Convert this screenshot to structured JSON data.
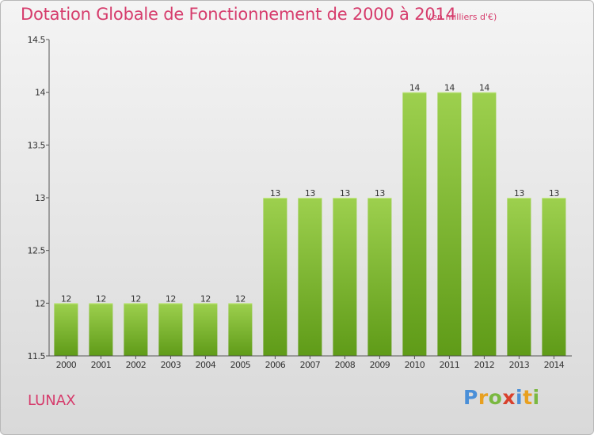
{
  "header": {
    "title": "Dotation Globale de Fonctionnement de 2000 à 2014",
    "unit_note": "(en milliers d'€)"
  },
  "footer": {
    "commune": "LUNAX",
    "logo_text": "Proxiti"
  },
  "colors": {
    "title": "#d63c6c",
    "bar_top": "#9dd04e",
    "bar_bottom": "#5f9b18",
    "axis": "#555555",
    "grid": "#dddddd"
  },
  "chart_data": {
    "type": "bar",
    "categories": [
      "2000",
      "2001",
      "2002",
      "2003",
      "2004",
      "2005",
      "2006",
      "2007",
      "2008",
      "2009",
      "2010",
      "2011",
      "2012",
      "2013",
      "2014"
    ],
    "values": [
      12,
      12,
      12,
      12,
      12,
      12,
      13,
      13,
      13,
      13,
      14,
      14,
      14,
      13,
      13
    ],
    "data_labels": [
      "12",
      "12",
      "12",
      "12",
      "12",
      "12",
      "13",
      "13",
      "13",
      "13",
      "14",
      "14",
      "14",
      "13",
      "13"
    ],
    "ylim": [
      11.5,
      14.5
    ],
    "yticks": [
      11.5,
      12,
      12.5,
      13,
      13.5,
      14,
      14.5
    ],
    "ytick_labels": [
      "11.5",
      "12",
      "12.5",
      "13",
      "13.5",
      "14",
      "14.5"
    ],
    "title": "Dotation Globale de Fonctionnement de 2000 à 2014",
    "xlabel": "",
    "ylabel": "",
    "grid": false,
    "legend": "none"
  }
}
